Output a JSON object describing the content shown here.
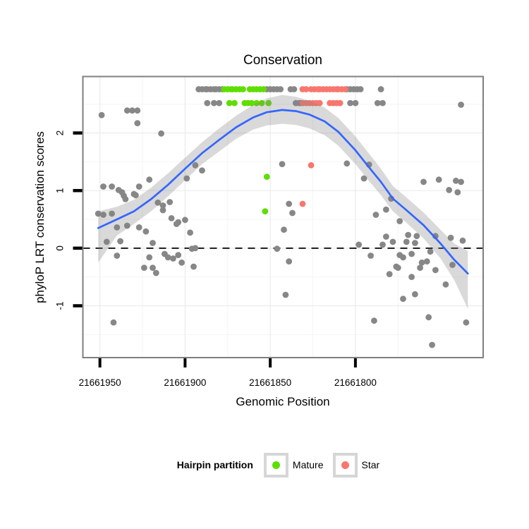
{
  "title": "Conservation",
  "axes": {
    "x": {
      "label": "Genomic Position"
    },
    "y": {
      "label": "phyloP LRT conservation scores"
    }
  },
  "legend": {
    "title": "Hairpin partition",
    "items": [
      {
        "label": "Mature",
        "color": "#5FDE00"
      },
      {
        "label": "Star",
        "color": "#F8766D"
      }
    ]
  },
  "colors": {
    "point_default": "#878787",
    "point_mature": "#5FDE00",
    "point_star": "#F8766D",
    "smooth_line": "#3366FF",
    "confidence_band": "rgba(128,128,128,0.30)",
    "grid_major": "#EBEBEB",
    "grid_minor": "#F4F4F4",
    "panel_border": "#7F7F7F",
    "reference_line": "#000000",
    "background": "#FFFFFF"
  },
  "chart_data": {
    "type": "scatter",
    "title": "Conservation",
    "xlabel": "Genomic Position",
    "ylabel": "phyloP LRT conservation scores",
    "x_domain": [
      21661960,
      21661725
    ],
    "y_domain": [
      -1.9,
      2.98
    ],
    "x_ticks": [
      21661950,
      21661900,
      21661850,
      21661800
    ],
    "x_minor_ticks": [
      21661925,
      21661875,
      21661825,
      21661775,
      21661725
    ],
    "y_ticks": [
      2,
      1,
      0,
      -1
    ],
    "y_minor_ticks": [
      2.5,
      1.5,
      0.5,
      -0.5,
      -1.5
    ],
    "reference_line_y": 0,
    "legend_title": "Hairpin partition",
    "legend_position": "bottom",
    "grid": true,
    "groups": [
      {
        "id": "none",
        "label": "",
        "color": "#878787",
        "points": [
          [
            21661892,
            2.76
          ],
          [
            21661890,
            2.76
          ],
          [
            21661888,
            2.76
          ],
          [
            21661887,
            2.76
          ],
          [
            21661885,
            2.76
          ],
          [
            21661883,
            2.76
          ],
          [
            21661882,
            2.76
          ],
          [
            21661880,
            2.76
          ],
          [
            21661878,
            2.76
          ],
          [
            21661852,
            2.76
          ],
          [
            21661850,
            2.76
          ],
          [
            21661848,
            2.76
          ],
          [
            21661846,
            2.76
          ],
          [
            21661844,
            2.76
          ],
          [
            21661838,
            2.76
          ],
          [
            21661836,
            2.76
          ],
          [
            21661805,
            2.76
          ],
          [
            21661803,
            2.76
          ],
          [
            21661801,
            2.76
          ],
          [
            21661799,
            2.76
          ],
          [
            21661797,
            2.76
          ],
          [
            21661785,
            2.76
          ],
          [
            21661887,
            2.52
          ],
          [
            21661883,
            2.52
          ],
          [
            21661880,
            2.52
          ],
          [
            21661835,
            2.52
          ],
          [
            21661833,
            2.52
          ],
          [
            21661832,
            2.52
          ],
          [
            21661803,
            2.52
          ],
          [
            21661800,
            2.52
          ],
          [
            21661787,
            2.52
          ],
          [
            21661784,
            2.52
          ],
          [
            21661738,
            2.49
          ],
          [
            21661949,
            2.31
          ],
          [
            21661934,
            2.39
          ],
          [
            21661931,
            2.39
          ],
          [
            21661928,
            2.39
          ],
          [
            21661928,
            2.17
          ],
          [
            21661914,
            1.99
          ],
          [
            21661948,
            1.07
          ],
          [
            21661943,
            1.07
          ],
          [
            21661939,
            1.01
          ],
          [
            21661937,
            0.97
          ],
          [
            21661936,
            0.91
          ],
          [
            21661935,
            0.85
          ],
          [
            21661930,
            0.94
          ],
          [
            21661929,
            0.92
          ],
          [
            21661927,
            1.07
          ],
          [
            21661921,
            1.19
          ],
          [
            21661916,
            0.79
          ],
          [
            21661913,
            0.74
          ],
          [
            21661909,
            0.8
          ],
          [
            21661913,
            0.66
          ],
          [
            21661899,
            1.21
          ],
          [
            21661894,
            1.44
          ],
          [
            21661890,
            1.35
          ],
          [
            21661951,
            0.6
          ],
          [
            21661948,
            0.58
          ],
          [
            21661943,
            0.6
          ],
          [
            21661940,
            0.36
          ],
          [
            21661934,
            0.39
          ],
          [
            21661946,
            0.11
          ],
          [
            21661938,
            0.12
          ],
          [
            21661940,
            -0.13
          ],
          [
            21661927,
            0.36
          ],
          [
            21661923,
            0.29
          ],
          [
            21661908,
            0.52
          ],
          [
            21661904,
            0.45
          ],
          [
            21661900,
            0.49
          ],
          [
            21661905,
            0.42
          ],
          [
            21661897,
            0.27
          ],
          [
            21661919,
            0.09
          ],
          [
            21661921,
            -0.16
          ],
          [
            21661924,
            -0.34
          ],
          [
            21661919,
            -0.34
          ],
          [
            21661917,
            -0.43
          ],
          [
            21661912,
            -0.1
          ],
          [
            21661910,
            -0.16
          ],
          [
            21661907,
            -0.18
          ],
          [
            21661904,
            -0.12
          ],
          [
            21661902,
            -0.25
          ],
          [
            21661896,
            -0.01
          ],
          [
            21661894,
            0.0
          ],
          [
            21661895,
            -0.32
          ],
          [
            21661942,
            -1.29
          ],
          [
            21661843,
            1.46
          ],
          [
            21661805,
            1.47
          ],
          [
            21661839,
            0.77
          ],
          [
            21661837,
            0.61
          ],
          [
            21661842,
            0.32
          ],
          [
            21661846,
            -0.01
          ],
          [
            21661839,
            -0.23
          ],
          [
            21661841,
            -0.81
          ],
          [
            21661792,
            1.45
          ],
          [
            21661795,
            1.21
          ],
          [
            21661760,
            1.15
          ],
          [
            21661751,
            1.19
          ],
          [
            21661741,
            1.17
          ],
          [
            21661738,
            1.15
          ],
          [
            21661745,
            1.01
          ],
          [
            21661740,
            0.97
          ],
          [
            21661779,
            0.86
          ],
          [
            21661782,
            0.67
          ],
          [
            21661788,
            0.58
          ],
          [
            21661774,
            0.47
          ],
          [
            21661782,
            0.2
          ],
          [
            21661769,
            0.23
          ],
          [
            21661764,
            0.21
          ],
          [
            21661798,
            0.06
          ],
          [
            21661784,
            0.06
          ],
          [
            21661778,
            0.11
          ],
          [
            21661770,
            0.11
          ],
          [
            21661765,
            0.09
          ],
          [
            21661753,
            0.21
          ],
          [
            21661744,
            0.18
          ],
          [
            21661737,
            0.13
          ],
          [
            21661791,
            -0.13
          ],
          [
            21661774,
            -0.12
          ],
          [
            21661772,
            -0.16
          ],
          [
            21661767,
            -0.1
          ],
          [
            21661756,
            -0.06
          ],
          [
            21661761,
            -0.25
          ],
          [
            21661758,
            -0.23
          ],
          [
            21661762,
            -0.34
          ],
          [
            21661753,
            -0.38
          ],
          [
            21661776,
            -0.32
          ],
          [
            21661775,
            -0.34
          ],
          [
            21661780,
            -0.45
          ],
          [
            21661767,
            -0.5
          ],
          [
            21661743,
            -0.29
          ],
          [
            21661747,
            -0.63
          ],
          [
            21661765,
            -0.8
          ],
          [
            21661772,
            -0.88
          ],
          [
            21661789,
            -1.26
          ],
          [
            21661757,
            -1.2
          ],
          [
            21661735,
            -1.29
          ],
          [
            21661755,
            -1.68
          ]
        ]
      },
      {
        "id": "mature",
        "label": "Mature",
        "color": "#5FDE00",
        "points": [
          [
            21661877,
            2.76
          ],
          [
            21661875,
            2.76
          ],
          [
            21661873,
            2.76
          ],
          [
            21661872,
            2.76
          ],
          [
            21661870,
            2.76
          ],
          [
            21661868,
            2.76
          ],
          [
            21661866,
            2.76
          ],
          [
            21661862,
            2.76
          ],
          [
            21661860,
            2.76
          ],
          [
            21661858,
            2.76
          ],
          [
            21661856,
            2.76
          ],
          [
            21661854,
            2.76
          ],
          [
            21661874,
            2.52
          ],
          [
            21661871,
            2.52
          ],
          [
            21661865,
            2.52
          ],
          [
            21661863,
            2.52
          ],
          [
            21661861,
            2.52
          ],
          [
            21661858,
            2.52
          ],
          [
            21661855,
            2.52
          ],
          [
            21661851,
            2.52
          ],
          [
            21661852,
            1.24
          ],
          [
            21661853,
            0.64
          ]
        ]
      },
      {
        "id": "star",
        "label": "Star",
        "color": "#F8766D",
        "points": [
          [
            21661831,
            2.76
          ],
          [
            21661829,
            2.76
          ],
          [
            21661826,
            2.76
          ],
          [
            21661824,
            2.76
          ],
          [
            21661822,
            2.76
          ],
          [
            21661821,
            2.76
          ],
          [
            21661819,
            2.76
          ],
          [
            21661817,
            2.76
          ],
          [
            21661815,
            2.76
          ],
          [
            21661813,
            2.76
          ],
          [
            21661811,
            2.76
          ],
          [
            21661810,
            2.76
          ],
          [
            21661808,
            2.76
          ],
          [
            21661806,
            2.76
          ],
          [
            21661831,
            2.52
          ],
          [
            21661829,
            2.52
          ],
          [
            21661827,
            2.52
          ],
          [
            21661825,
            2.52
          ],
          [
            21661823,
            2.52
          ],
          [
            21661821,
            2.52
          ],
          [
            21661815,
            2.52
          ],
          [
            21661813,
            2.52
          ],
          [
            21661811,
            2.52
          ],
          [
            21661809,
            2.52
          ],
          [
            21661826,
            1.44
          ],
          [
            21661831,
            0.77
          ]
        ]
      }
    ],
    "smooth_line": {
      "color": "#3366FF",
      "points": [
        [
          21661951,
          0.35
        ],
        [
          21661940,
          0.5
        ],
        [
          21661930,
          0.64
        ],
        [
          21661920,
          0.85
        ],
        [
          21661910,
          1.1
        ],
        [
          21661900,
          1.38
        ],
        [
          21661890,
          1.65
        ],
        [
          21661880,
          1.88
        ],
        [
          21661870,
          2.1
        ],
        [
          21661860,
          2.27
        ],
        [
          21661852,
          2.36
        ],
        [
          21661843,
          2.4
        ],
        [
          21661835,
          2.38
        ],
        [
          21661827,
          2.32
        ],
        [
          21661818,
          2.2
        ],
        [
          21661810,
          2.02
        ],
        [
          21661800,
          1.7
        ],
        [
          21661793,
          1.44
        ],
        [
          21661785,
          1.15
        ],
        [
          21661778,
          0.86
        ],
        [
          21661770,
          0.66
        ],
        [
          21661760,
          0.4
        ],
        [
          21661750,
          0.08
        ],
        [
          21661742,
          -0.2
        ],
        [
          21661734,
          -0.44
        ]
      ]
    },
    "confidence_band": {
      "color": "rgba(128,128,128,0.30)",
      "points": [
        [
          21661951,
          0.64,
          -0.25
        ],
        [
          21661940,
          0.72,
          0.22
        ],
        [
          21661930,
          0.84,
          0.42
        ],
        [
          21661920,
          1.05,
          0.64
        ],
        [
          21661910,
          1.3,
          0.9
        ],
        [
          21661900,
          1.57,
          1.18
        ],
        [
          21661890,
          1.84,
          1.46
        ],
        [
          21661880,
          2.08,
          1.68
        ],
        [
          21661870,
          2.3,
          1.9
        ],
        [
          21661860,
          2.49,
          2.06
        ],
        [
          21661852,
          2.6,
          2.13
        ],
        [
          21661843,
          2.66,
          2.16
        ],
        [
          21661835,
          2.63,
          2.14
        ],
        [
          21661827,
          2.56,
          2.08
        ],
        [
          21661818,
          2.44,
          1.96
        ],
        [
          21661810,
          2.26,
          1.78
        ],
        [
          21661800,
          1.94,
          1.46
        ],
        [
          21661793,
          1.68,
          1.2
        ],
        [
          21661785,
          1.38,
          0.92
        ],
        [
          21661778,
          1.08,
          0.64
        ],
        [
          21661770,
          0.88,
          0.44
        ],
        [
          21661760,
          0.62,
          0.17
        ],
        [
          21661750,
          0.32,
          -0.18
        ],
        [
          21661742,
          0.08,
          -0.55
        ],
        [
          21661734,
          -0.05,
          -1.05
        ]
      ]
    }
  }
}
